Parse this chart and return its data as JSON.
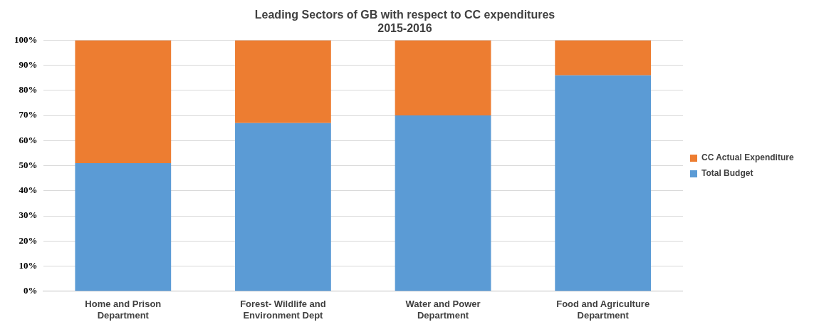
{
  "chart_data": {
    "type": "bar",
    "title": [
      "Leading Sectors of GB with respect to CC expenditures",
      "2015-2016"
    ],
    "categories": [
      "Home and Prison Department",
      "Forest- Wildlife and Environment Dept",
      "Water and Power Department",
      "Food and Agriculture Department"
    ],
    "series": [
      {
        "name": "Total Budget",
        "color": "#5b9bd5",
        "values": [
          51,
          67,
          70,
          86
        ]
      },
      {
        "name": "CC Actual Expenditure",
        "color": "#ed7d31",
        "values": [
          49,
          33,
          30,
          14
        ]
      }
    ],
    "stacked": true,
    "ylim": [
      0,
      100
    ],
    "yticks": [
      {
        "value": 0,
        "label": "0%"
      },
      {
        "value": 10,
        "label": "10%"
      },
      {
        "value": 20,
        "label": "20%"
      },
      {
        "value": 30,
        "label": "30%"
      },
      {
        "value": 40,
        "label": "40%"
      },
      {
        "value": 50,
        "label": "50%"
      },
      {
        "value": 60,
        "label": "60%"
      },
      {
        "value": 70,
        "label": "70%"
      },
      {
        "value": 80,
        "label": "80%"
      },
      {
        "value": 90,
        "label": "90%"
      },
      {
        "value": 100,
        "label": "100%"
      }
    ],
    "grid": "y",
    "legend": "right"
  }
}
